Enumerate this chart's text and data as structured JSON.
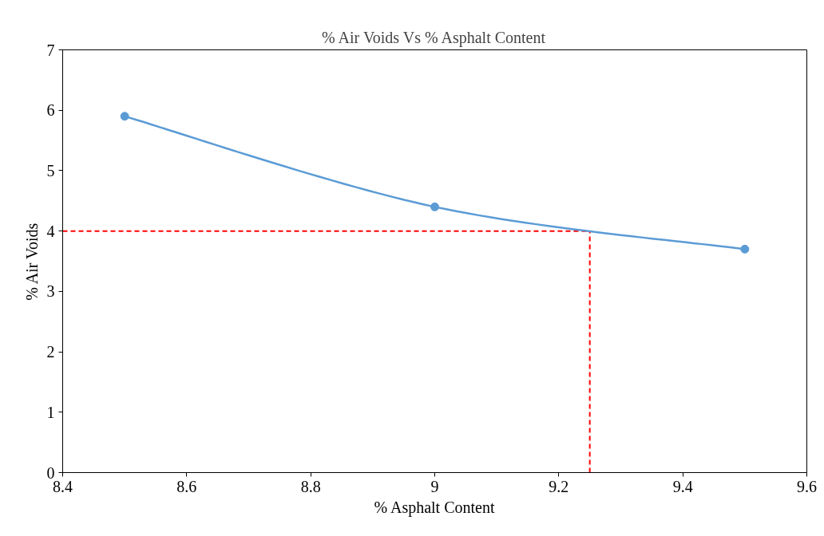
{
  "chart_data": {
    "type": "line",
    "title": "% Air Voids Vs % Asphalt Content",
    "xlabel": "% Asphalt Content",
    "ylabel": "% Air Voids",
    "x": [
      8.5,
      9,
      9.5
    ],
    "series": [
      {
        "color": "#5b9bd5",
        "values": [
          5.9,
          4.4,
          3.7
        ]
      }
    ],
    "marker": "circle",
    "line_style": "solid",
    "grid": false,
    "xlim": [
      8.4,
      9.6
    ],
    "xticks": [
      8.4,
      8.6,
      8.8,
      9,
      9.2,
      9.4,
      9.6
    ],
    "ylim": [
      0,
      7
    ],
    "yticks": [
      0,
      1,
      2,
      3,
      4,
      5,
      6,
      7
    ],
    "ref_lines": [
      {
        "axis": "y",
        "value": 4,
        "color": "#ff0000",
        "line_style": "dashed"
      },
      {
        "axis": "x",
        "value": 9.25,
        "color": "#ff0000",
        "line_style": "dashed"
      }
    ]
  }
}
